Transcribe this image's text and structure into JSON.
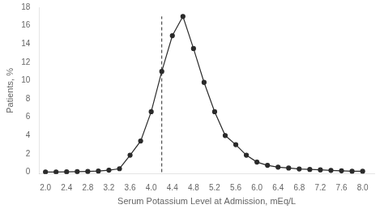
{
  "chart_data": {
    "type": "line",
    "x": [
      2.0,
      2.2,
      2.4,
      2.6,
      2.8,
      3.0,
      3.2,
      3.4,
      3.6,
      3.8,
      4.0,
      4.2,
      4.4,
      4.6,
      4.8,
      5.0,
      5.2,
      5.4,
      5.6,
      5.8,
      6.0,
      6.2,
      6.4,
      6.6,
      6.8,
      7.0,
      7.2,
      7.4,
      7.6,
      7.8,
      8.0
    ],
    "values": [
      0.02,
      0.02,
      0.03,
      0.05,
      0.08,
      0.12,
      0.22,
      0.38,
      1.85,
      3.4,
      6.6,
      11.0,
      14.9,
      17.0,
      13.5,
      9.8,
      6.6,
      4.0,
      3.0,
      1.85,
      1.1,
      0.75,
      0.55,
      0.45,
      0.35,
      0.3,
      0.25,
      0.2,
      0.15,
      0.1,
      0.1
    ],
    "color": "#2a2a2a",
    "marker": "circle",
    "reference_line": {
      "x": 4.2,
      "y": [
        0,
        17.0
      ],
      "line_style": "dashed"
    },
    "xlabel": "Serum Potassium Level at Admission, mEq/L",
    "ylabel": "Patients, %",
    "xlim": [
      1.88,
      8.22
    ],
    "ylim": [
      -0.2,
      18
    ],
    "xticks": [
      {
        "value": 2.0,
        "label": "2.0"
      },
      2.4,
      2.8,
      3.2,
      3.6,
      {
        "value": 4.0,
        "label": "4.0"
      },
      4.4,
      4.8,
      5.2,
      5.6,
      {
        "value": 6.0,
        "label": "6.0"
      },
      6.4,
      6.8,
      7.2,
      7.6,
      {
        "value": 8.0,
        "label": "8.0"
      }
    ],
    "yticks": [
      0,
      2,
      4,
      6,
      8,
      10,
      12,
      14,
      16,
      18
    ],
    "grid": false
  }
}
